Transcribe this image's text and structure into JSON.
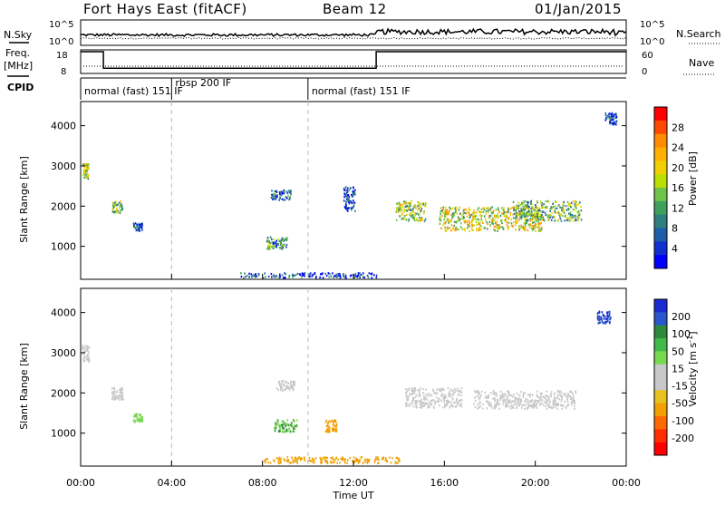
{
  "header": {
    "station": "Fort Hays East (fitACF)",
    "beam": "Beam 12",
    "date": "01/Jan/2015"
  },
  "noise_panel": {
    "left_label": "N.Sky",
    "right_label": "N.Search",
    "left_ticks": [
      "10^5",
      "10^0"
    ],
    "right_ticks": [
      "10^5",
      "10^0"
    ]
  },
  "freq_panel": {
    "left_label_1": "Freq.",
    "left_label_2": "[MHz]",
    "right_label": "Nave",
    "left_ticks": [
      "18",
      "8"
    ],
    "right_ticks": [
      "60",
      "0"
    ],
    "freq_step": [
      {
        "t": 0,
        "mhz": 18
      },
      {
        "t": 1.0,
        "mhz": 18
      },
      {
        "t": 1.0,
        "mhz": 9.7
      },
      {
        "t": 13.0,
        "mhz": 9.7
      },
      {
        "t": 13.0,
        "mhz": 18
      },
      {
        "t": 24,
        "mhz": 18
      }
    ]
  },
  "cpid": {
    "label": "CPID",
    "segments": [
      {
        "text": "normal (fast) 151 IF",
        "start": 0
      },
      {
        "text": "rbsp 200 IF",
        "start": 4.0
      },
      {
        "text": "normal (fast) 151 IF",
        "start": 10.0
      }
    ]
  },
  "colorbar_power": {
    "title": "Power [dB]",
    "labels": [
      "28",
      "24",
      "20",
      "16",
      "12",
      "8",
      "4"
    ],
    "colors": [
      "#ff0000",
      "#ff4800",
      "#ff8c00",
      "#ffb000",
      "#f0d000",
      "#b9e000",
      "#6fc24a",
      "#3fa05c",
      "#2e7e7e",
      "#1e5ea8",
      "#1030d0",
      "#0000ff"
    ]
  },
  "colorbar_velocity": {
    "title": "Velocity [m s^-1]",
    "labels": [
      "200",
      "100",
      "50",
      "15",
      "-15",
      "-50",
      "-100",
      "-200"
    ],
    "colors": [
      "#1a2bd0",
      "#2a57c9",
      "#2e8a3a",
      "#41b84a",
      "#77d94f",
      "#c8c8c8",
      "#c8c8c8",
      "#e8c020",
      "#f0a000",
      "#ff6a00",
      "#ff3000",
      "#ff0000"
    ]
  },
  "chart_data": {
    "type": "heatmap",
    "xlabel": "Time UT",
    "ylabel": "Slant Range [km]",
    "x_ticks": [
      "00:00",
      "04:00",
      "08:00",
      "12:00",
      "16:00",
      "20:00",
      "00:00"
    ],
    "y_ticks": [
      "1000",
      "2000",
      "3000",
      "4000"
    ],
    "xlim_hours": [
      0,
      24
    ],
    "ylim_km": [
      180,
      4600
    ],
    "markers_hours": [
      4,
      10
    ],
    "power_regions": [
      {
        "t": 0.2,
        "r": 2900,
        "dt": 0.25,
        "dr": 400,
        "value": 18
      },
      {
        "t": 1.6,
        "r": 2000,
        "dt": 0.45,
        "dr": 300,
        "value": 14
      },
      {
        "t": 2.5,
        "r": 1500,
        "dt": 0.4,
        "dr": 200,
        "value": 6
      },
      {
        "t": 8.8,
        "r": 2300,
        "dt": 0.9,
        "dr": 250,
        "value": 8
      },
      {
        "t": 8.6,
        "r": 1100,
        "dt": 0.9,
        "dr": 300,
        "value": 10
      },
      {
        "t": 11.8,
        "r": 2200,
        "dt": 0.5,
        "dr": 600,
        "value": 6
      },
      {
        "t": 14.5,
        "r": 1900,
        "dt": 1.3,
        "dr": 500,
        "value": 16
      },
      {
        "t": 18.0,
        "r": 1700,
        "dt": 4.5,
        "dr": 600,
        "value": 18
      },
      {
        "t": 20.5,
        "r": 1900,
        "dt": 3.0,
        "dr": 500,
        "value": 14
      },
      {
        "t": 10.0,
        "r": 300,
        "dt": 6.0,
        "dr": 120,
        "value": 6
      },
      {
        "t": 23.3,
        "r": 4200,
        "dt": 0.5,
        "dr": 300,
        "value": 6
      }
    ],
    "velocity_regions": [
      {
        "t": 0.2,
        "r": 3000,
        "dt": 0.3,
        "dr": 400,
        "value": 0
      },
      {
        "t": 1.6,
        "r": 2000,
        "dt": 0.5,
        "dr": 300,
        "value": 0
      },
      {
        "t": 2.5,
        "r": 1400,
        "dt": 0.4,
        "dr": 200,
        "value": 20
      },
      {
        "t": 9.0,
        "r": 1200,
        "dt": 1.0,
        "dr": 300,
        "value": 30
      },
      {
        "t": 9.0,
        "r": 2200,
        "dt": 0.8,
        "dr": 250,
        "value": 0
      },
      {
        "t": 11.0,
        "r": 1200,
        "dt": 0.5,
        "dr": 300,
        "value": -40
      },
      {
        "t": 15.5,
        "r": 1900,
        "dt": 2.5,
        "dr": 500,
        "value": 0
      },
      {
        "t": 19.5,
        "r": 1850,
        "dt": 4.5,
        "dr": 450,
        "value": 0
      },
      {
        "t": 11.0,
        "r": 350,
        "dt": 6.0,
        "dr": 150,
        "value": -40
      },
      {
        "t": 23.0,
        "r": 3900,
        "dt": 0.6,
        "dr": 300,
        "value": 150
      }
    ]
  }
}
